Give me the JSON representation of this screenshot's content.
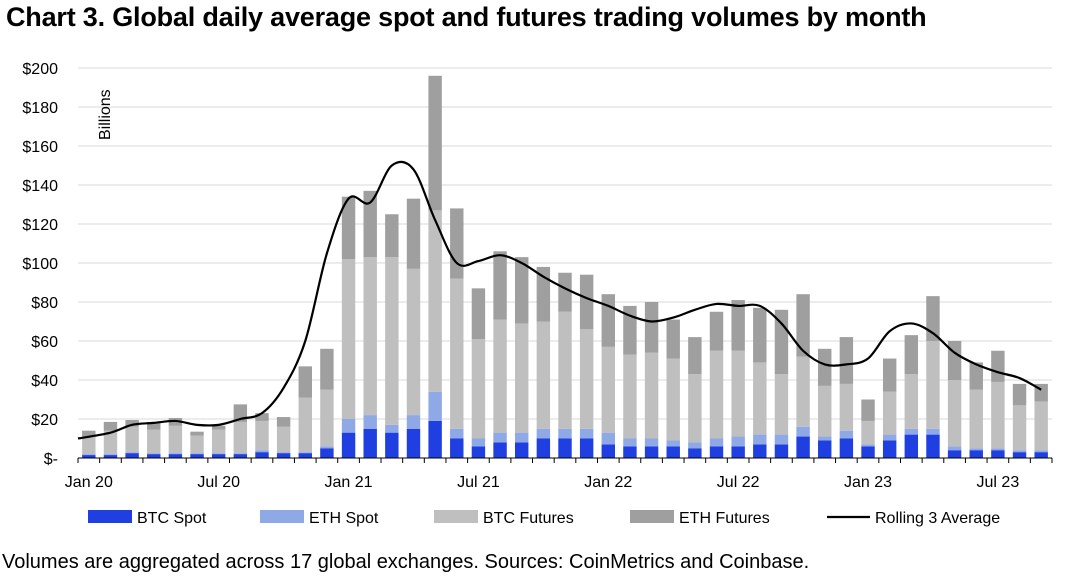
{
  "chart_data": {
    "type": "bar",
    "stacked": true,
    "title": "Chart 3. Global daily average spot and futures trading volumes by month",
    "ylabel": "Billions",
    "ylim": [
      0,
      200
    ],
    "yticks": [
      "$-",
      "$20",
      "$40",
      "$60",
      "$80",
      "$100",
      "$120",
      "$140",
      "$160",
      "$180",
      "$200"
    ],
    "ytick_values": [
      0,
      20,
      40,
      60,
      80,
      100,
      120,
      140,
      160,
      180,
      200
    ],
    "xtick_labels": [
      {
        "label": "Jan 20",
        "index": 0
      },
      {
        "label": "Jul 20",
        "index": 6
      },
      {
        "label": "Jan 21",
        "index": 12
      },
      {
        "label": "Jul 21",
        "index": 18
      },
      {
        "label": "Jan 22",
        "index": 24
      },
      {
        "label": "Jul 22",
        "index": 30
      },
      {
        "label": "Jan 23",
        "index": 36
      },
      {
        "label": "Jul 23",
        "index": 42
      }
    ],
    "categories": [
      "Jan 20",
      "Feb 20",
      "Mar 20",
      "Apr 20",
      "May 20",
      "Jun 20",
      "Jul 20",
      "Aug 20",
      "Sep 20",
      "Oct 20",
      "Nov 20",
      "Dec 20",
      "Jan 21",
      "Feb 21",
      "Mar 21",
      "Apr 21",
      "May 21",
      "Jun 21",
      "Jul 21",
      "Aug 21",
      "Sep 21",
      "Oct 21",
      "Nov 21",
      "Dec 21",
      "Jan 22",
      "Feb 22",
      "Mar 22",
      "Apr 22",
      "May 22",
      "Jun 22",
      "Jul 22",
      "Aug 22",
      "Sep 22",
      "Oct 22",
      "Nov 22",
      "Dec 22",
      "Jan 23",
      "Feb 23",
      "Mar 23",
      "Apr 23",
      "May 23",
      "Jun 23",
      "Jul 23",
      "Aug 23",
      "Sep 23"
    ],
    "series": [
      {
        "name": "BTC Spot",
        "color": "#1f3fe0",
        "values": [
          1.5,
          1.5,
          2.5,
          2,
          2,
          2,
          2,
          2,
          3,
          2.5,
          2.5,
          5,
          13,
          15,
          13,
          15,
          19,
          10,
          6,
          8,
          8,
          10,
          10,
          10,
          7,
          6,
          6,
          6,
          5,
          6,
          6,
          7,
          7,
          11,
          9,
          10,
          6,
          9,
          12,
          12,
          4,
          4,
          4,
          3,
          3
        ]
      },
      {
        "name": "ETH Spot",
        "color": "#8ea9e6",
        "values": [
          0.5,
          0.5,
          0.5,
          0.5,
          0.5,
          0.5,
          0.5,
          0.5,
          1,
          0.5,
          0.5,
          1,
          7,
          7,
          4,
          7,
          15,
          5,
          4,
          5,
          5,
          5,
          5,
          5,
          6,
          4,
          4,
          3,
          3,
          4,
          5,
          5,
          5,
          5,
          2,
          4,
          1,
          3,
          3,
          3,
          2,
          1,
          1,
          1,
          1
        ]
      },
      {
        "name": "BTC Futures",
        "color": "#bfbfbf",
        "values": [
          9,
          12,
          13,
          12,
          14,
          9,
          12,
          16,
          15,
          13,
          28,
          29,
          82,
          81,
          86,
          75,
          93,
          77,
          51,
          58,
          56,
          55,
          60,
          51,
          44,
          43,
          44,
          42,
          35,
          45,
          44,
          37,
          31,
          36,
          26,
          24,
          12,
          22,
          28,
          45,
          34,
          30,
          34,
          23,
          25
        ]
      },
      {
        "name": "ETH Futures",
        "color": "#9f9f9f",
        "values": [
          3,
          4.5,
          3.5,
          4,
          4,
          2,
          2,
          9,
          4,
          5,
          16,
          21,
          32,
          34,
          22,
          36,
          69,
          36,
          26,
          35,
          34,
          28,
          20,
          28,
          27,
          25,
          26,
          20,
          19,
          20,
          26,
          28,
          33,
          32,
          19,
          24,
          11,
          17,
          20,
          23,
          20,
          14,
          16,
          11,
          9
        ]
      }
    ],
    "line": {
      "name": "Rolling 3 Average",
      "color": "#000000",
      "values": [
        10,
        13,
        17,
        18,
        19,
        17,
        17,
        20,
        23,
        36,
        60,
        105,
        133,
        131,
        150,
        148,
        122,
        100,
        101,
        104,
        100,
        93,
        87,
        82,
        78,
        73,
        70,
        72,
        76,
        79,
        78,
        78,
        69,
        55,
        48,
        48,
        51,
        65,
        69,
        64,
        54,
        48,
        44,
        41,
        35
      ]
    }
  },
  "legend": {
    "btc_spot": "BTC Spot",
    "eth_spot": "ETH Spot",
    "btc_futures": "BTC Futures",
    "eth_futures": "ETH Futures",
    "rolling": "Rolling 3 Average"
  },
  "footer": "Volumes are aggregated across 17 global exchanges. Sources: CoinMetrics and Coinbase."
}
